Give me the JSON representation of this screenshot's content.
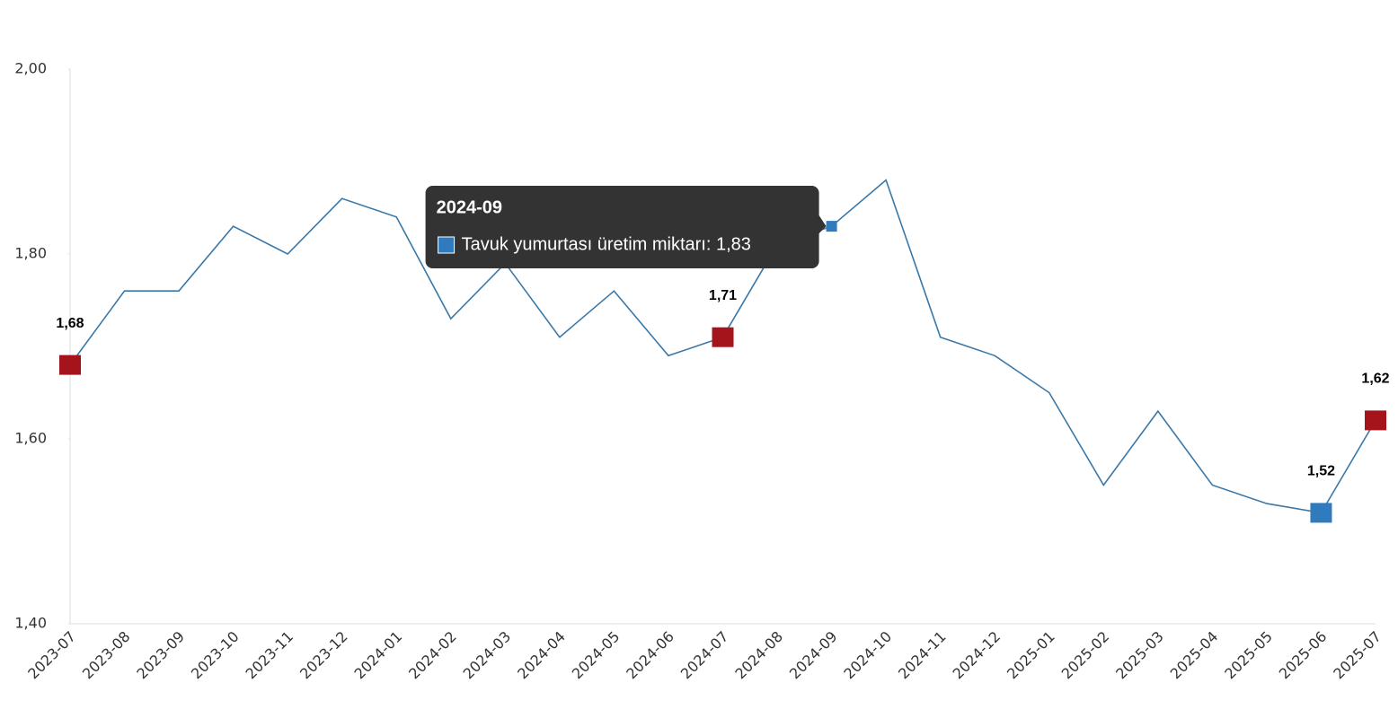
{
  "chart_data": {
    "type": "line",
    "categories": [
      "2023-07",
      "2023-08",
      "2023-09",
      "2023-10",
      "2023-11",
      "2023-12",
      "2024-01",
      "2024-02",
      "2024-03",
      "2024-04",
      "2024-05",
      "2024-06",
      "2024-07",
      "2024-08",
      "2024-09",
      "2024-10",
      "2024-11",
      "2024-12",
      "2025-01",
      "2025-02",
      "2025-03",
      "2025-04",
      "2025-05",
      "2025-06",
      "2025-07"
    ],
    "series": [
      {
        "name": "Tavuk yumurtası üretim miktarı",
        "color": "#3a78a8",
        "values": [
          1.68,
          1.76,
          1.76,
          1.83,
          1.8,
          1.86,
          1.84,
          1.73,
          1.79,
          1.71,
          1.76,
          1.69,
          1.71,
          1.81,
          1.83,
          1.88,
          1.71,
          1.69,
          1.65,
          1.55,
          1.63,
          1.55,
          1.53,
          1.52,
          1.62
        ],
        "value_labels": [
          "1,68",
          null,
          null,
          null,
          null,
          null,
          null,
          null,
          null,
          null,
          null,
          null,
          "1,71",
          null,
          null,
          null,
          null,
          null,
          null,
          null,
          null,
          null,
          null,
          "1,52",
          "1,62"
        ],
        "marker_colors": [
          "#a5141b",
          null,
          null,
          null,
          null,
          null,
          null,
          null,
          null,
          null,
          null,
          null,
          "#a5141b",
          null,
          null,
          null,
          null,
          null,
          null,
          null,
          null,
          null,
          null,
          "#2f7bbd",
          "#a5141b"
        ]
      }
    ],
    "ylim": [
      1.4,
      2.0
    ],
    "yticks": [
      {
        "value": 1.4,
        "label": "1,40"
      },
      {
        "value": 1.6,
        "label": "1,60"
      },
      {
        "value": 1.8,
        "label": "1,80"
      },
      {
        "value": 2.0,
        "label": "2,00"
      }
    ],
    "grid": false,
    "tooltip": {
      "title": "2024-09",
      "text": "Tavuk yumurtası üretim miktarı: 1,83",
      "color": "#2f7bbd"
    }
  }
}
